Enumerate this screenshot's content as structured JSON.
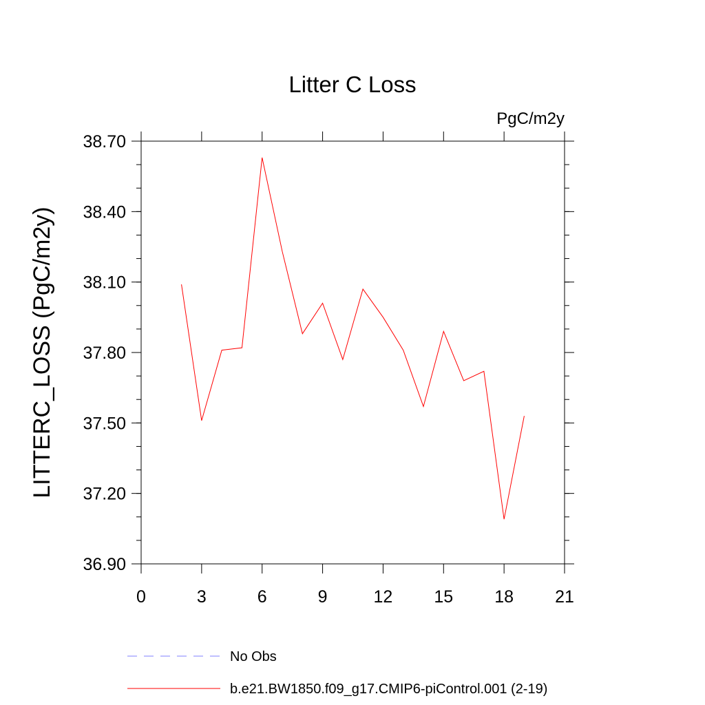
{
  "chart_data": {
    "type": "line",
    "title": "Litter C Loss",
    "units_label": "PgC/m2y",
    "ylabel": "LITTERC_LOSS  (PgC/m2y)",
    "xlabel": "",
    "xlim": [
      0,
      21
    ],
    "ylim": [
      36.9,
      38.7
    ],
    "xticks": [
      0,
      3,
      6,
      9,
      12,
      15,
      18,
      21
    ],
    "xtick_labels": [
      "0",
      "3",
      "6",
      "9",
      "12",
      "15",
      "18",
      "21"
    ],
    "yticks": [
      36.9,
      37.2,
      37.5,
      37.8,
      38.1,
      38.4,
      38.7
    ],
    "ytick_labels": [
      "36.90",
      "37.20",
      "37.50",
      "37.80",
      "38.10",
      "38.40",
      "38.70"
    ],
    "grid": false,
    "legend_position": "bottom",
    "series": [
      {
        "name": "No Obs",
        "color": "#0000ff",
        "style": "dashed",
        "x": [],
        "y": []
      },
      {
        "name": "b.e21.BW1850.f09_g17.CMIP6-piControl.001 (2-19)",
        "color": "#ff0000",
        "style": "solid",
        "x": [
          2,
          3,
          4,
          5,
          6,
          7,
          8,
          9,
          10,
          11,
          12,
          13,
          14,
          15,
          16,
          17,
          18,
          19
        ],
        "y": [
          38.09,
          37.51,
          37.81,
          37.82,
          38.63,
          38.23,
          37.88,
          38.01,
          37.77,
          38.07,
          37.95,
          37.81,
          37.57,
          37.89,
          37.68,
          37.72,
          37.09,
          37.53
        ]
      }
    ]
  }
}
